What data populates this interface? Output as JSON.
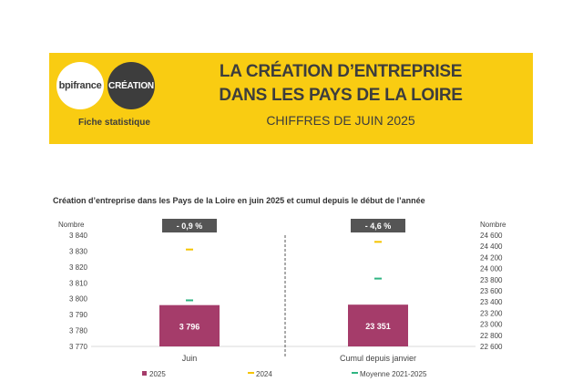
{
  "header": {
    "logo_bpi": "bpifrance",
    "logo_creation": "CRÉATION",
    "subtitle": "Fiche statistique",
    "title_line1": "LA CRÉATION D’ENTREPRISE",
    "title_line2": "DANS LES PAYS DE LA LOIRE",
    "title_line3": "CHIFFRES DE JUIN 2025"
  },
  "colors": {
    "banner": "#f9cc12",
    "bar_2025": "#a53c6a",
    "marker_2024": "#f5c400",
    "marker_avg": "#2fb582",
    "badge": "#555555"
  },
  "chart_data": [
    {
      "type": "bar",
      "title": "Création d’entreprise dans les Pays de la Loire en juin 2025 et cumul depuis le début de l’année",
      "categories": [
        "Juin"
      ],
      "ylabel": "Nombre",
      "ylim": [
        3770,
        3840
      ],
      "yticks": [
        "3 840",
        "3 830",
        "3 820",
        "3 810",
        "3 800",
        "3 790",
        "3 780",
        "3 770"
      ],
      "series": [
        {
          "name": "2025",
          "values": [
            3796
          ],
          "label": "3 796"
        },
        {
          "name": "2024",
          "values": [
            3831
          ]
        },
        {
          "name": "Moyenne 2021-2025",
          "values": [
            3799
          ]
        }
      ],
      "badge": "- 0,9 %"
    },
    {
      "type": "bar",
      "categories": [
        "Cumul depuis janvier"
      ],
      "ylabel": "Nombre",
      "ylim": [
        22600,
        24600
      ],
      "yticks": [
        "24 600",
        "24 400",
        "24 200",
        "24 000",
        "23 800",
        "23 600",
        "23 400",
        "23 200",
        "23 000",
        "22 800",
        "22 600"
      ],
      "series": [
        {
          "name": "2025",
          "values": [
            23351
          ],
          "label": "23 351"
        },
        {
          "name": "2024",
          "values": [
            24480
          ]
        },
        {
          "name": "Moyenne 2021-2025",
          "values": [
            23820
          ]
        }
      ],
      "badge": "- 4,6 %"
    }
  ],
  "legend": [
    "2025",
    "2024",
    "Moyenne 2021-2025"
  ]
}
